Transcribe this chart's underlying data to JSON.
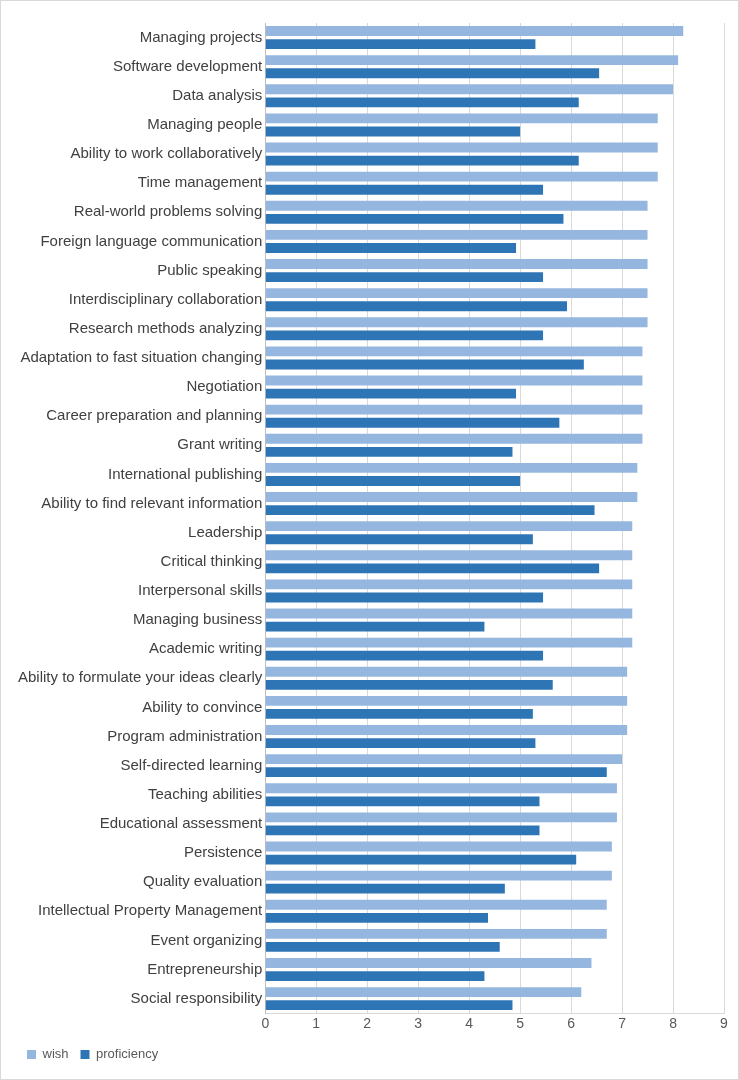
{
  "chart_data": {
    "type": "bar",
    "orientation": "horizontal",
    "categories": [
      "Managing projects",
      "Software development",
      "Data analysis",
      "Managing people",
      "Ability to work collaboratively",
      "Time management",
      "Real-world problems solving",
      "Foreign language communication",
      "Public speaking",
      "Interdisciplinary collaboration",
      "Research methods analyzing",
      "Adaptation to fast situation changing",
      "Negotiation",
      "Career preparation and planning",
      "Grant writing",
      "International publishing",
      "Ability to find relevant information",
      "Leadership",
      "Critical thinking",
      "Interpersonal skills",
      "Managing business",
      "Academic writing",
      "Ability to formulate your ideas clearly",
      "Ability to convince",
      "Program administration",
      "Self-directed learning",
      "Teaching abilities",
      "Educational assessment",
      "Persistence",
      "Quality evaluation",
      "Intellectual Property Management",
      "Event organizing",
      "Entrepreneurship",
      "Social responsibility"
    ],
    "series": [
      {
        "name": "wish",
        "color": "#95b7df",
        "values": [
          8.2,
          8.1,
          8.0,
          7.7,
          7.7,
          7.7,
          7.5,
          7.5,
          7.5,
          7.5,
          7.5,
          7.4,
          7.4,
          7.4,
          7.4,
          7.3,
          7.3,
          7.2,
          7.2,
          7.2,
          7.2,
          7.2,
          7.1,
          7.1,
          7.1,
          7.0,
          6.9,
          6.9,
          6.8,
          6.8,
          6.7,
          6.7,
          6.4,
          6.2
        ]
      },
      {
        "name": "proficiency",
        "color": "#2e75b6",
        "values": [
          5.3,
          6.55,
          6.15,
          5.0,
          6.15,
          5.45,
          5.85,
          4.92,
          5.45,
          5.92,
          5.45,
          6.25,
          4.92,
          5.77,
          4.85,
          5.0,
          6.46,
          5.25,
          6.55,
          5.45,
          4.3,
          5.45,
          5.64,
          5.25,
          5.3,
          6.7,
          5.38,
          5.38,
          6.1,
          4.7,
          4.37,
          4.6,
          4.3,
          4.85
        ]
      }
    ],
    "xlim": [
      0,
      9
    ],
    "xticks": [
      0,
      1,
      2,
      3,
      4,
      5,
      6,
      7,
      8,
      9
    ],
    "grid": "x",
    "legend": "bottom"
  }
}
